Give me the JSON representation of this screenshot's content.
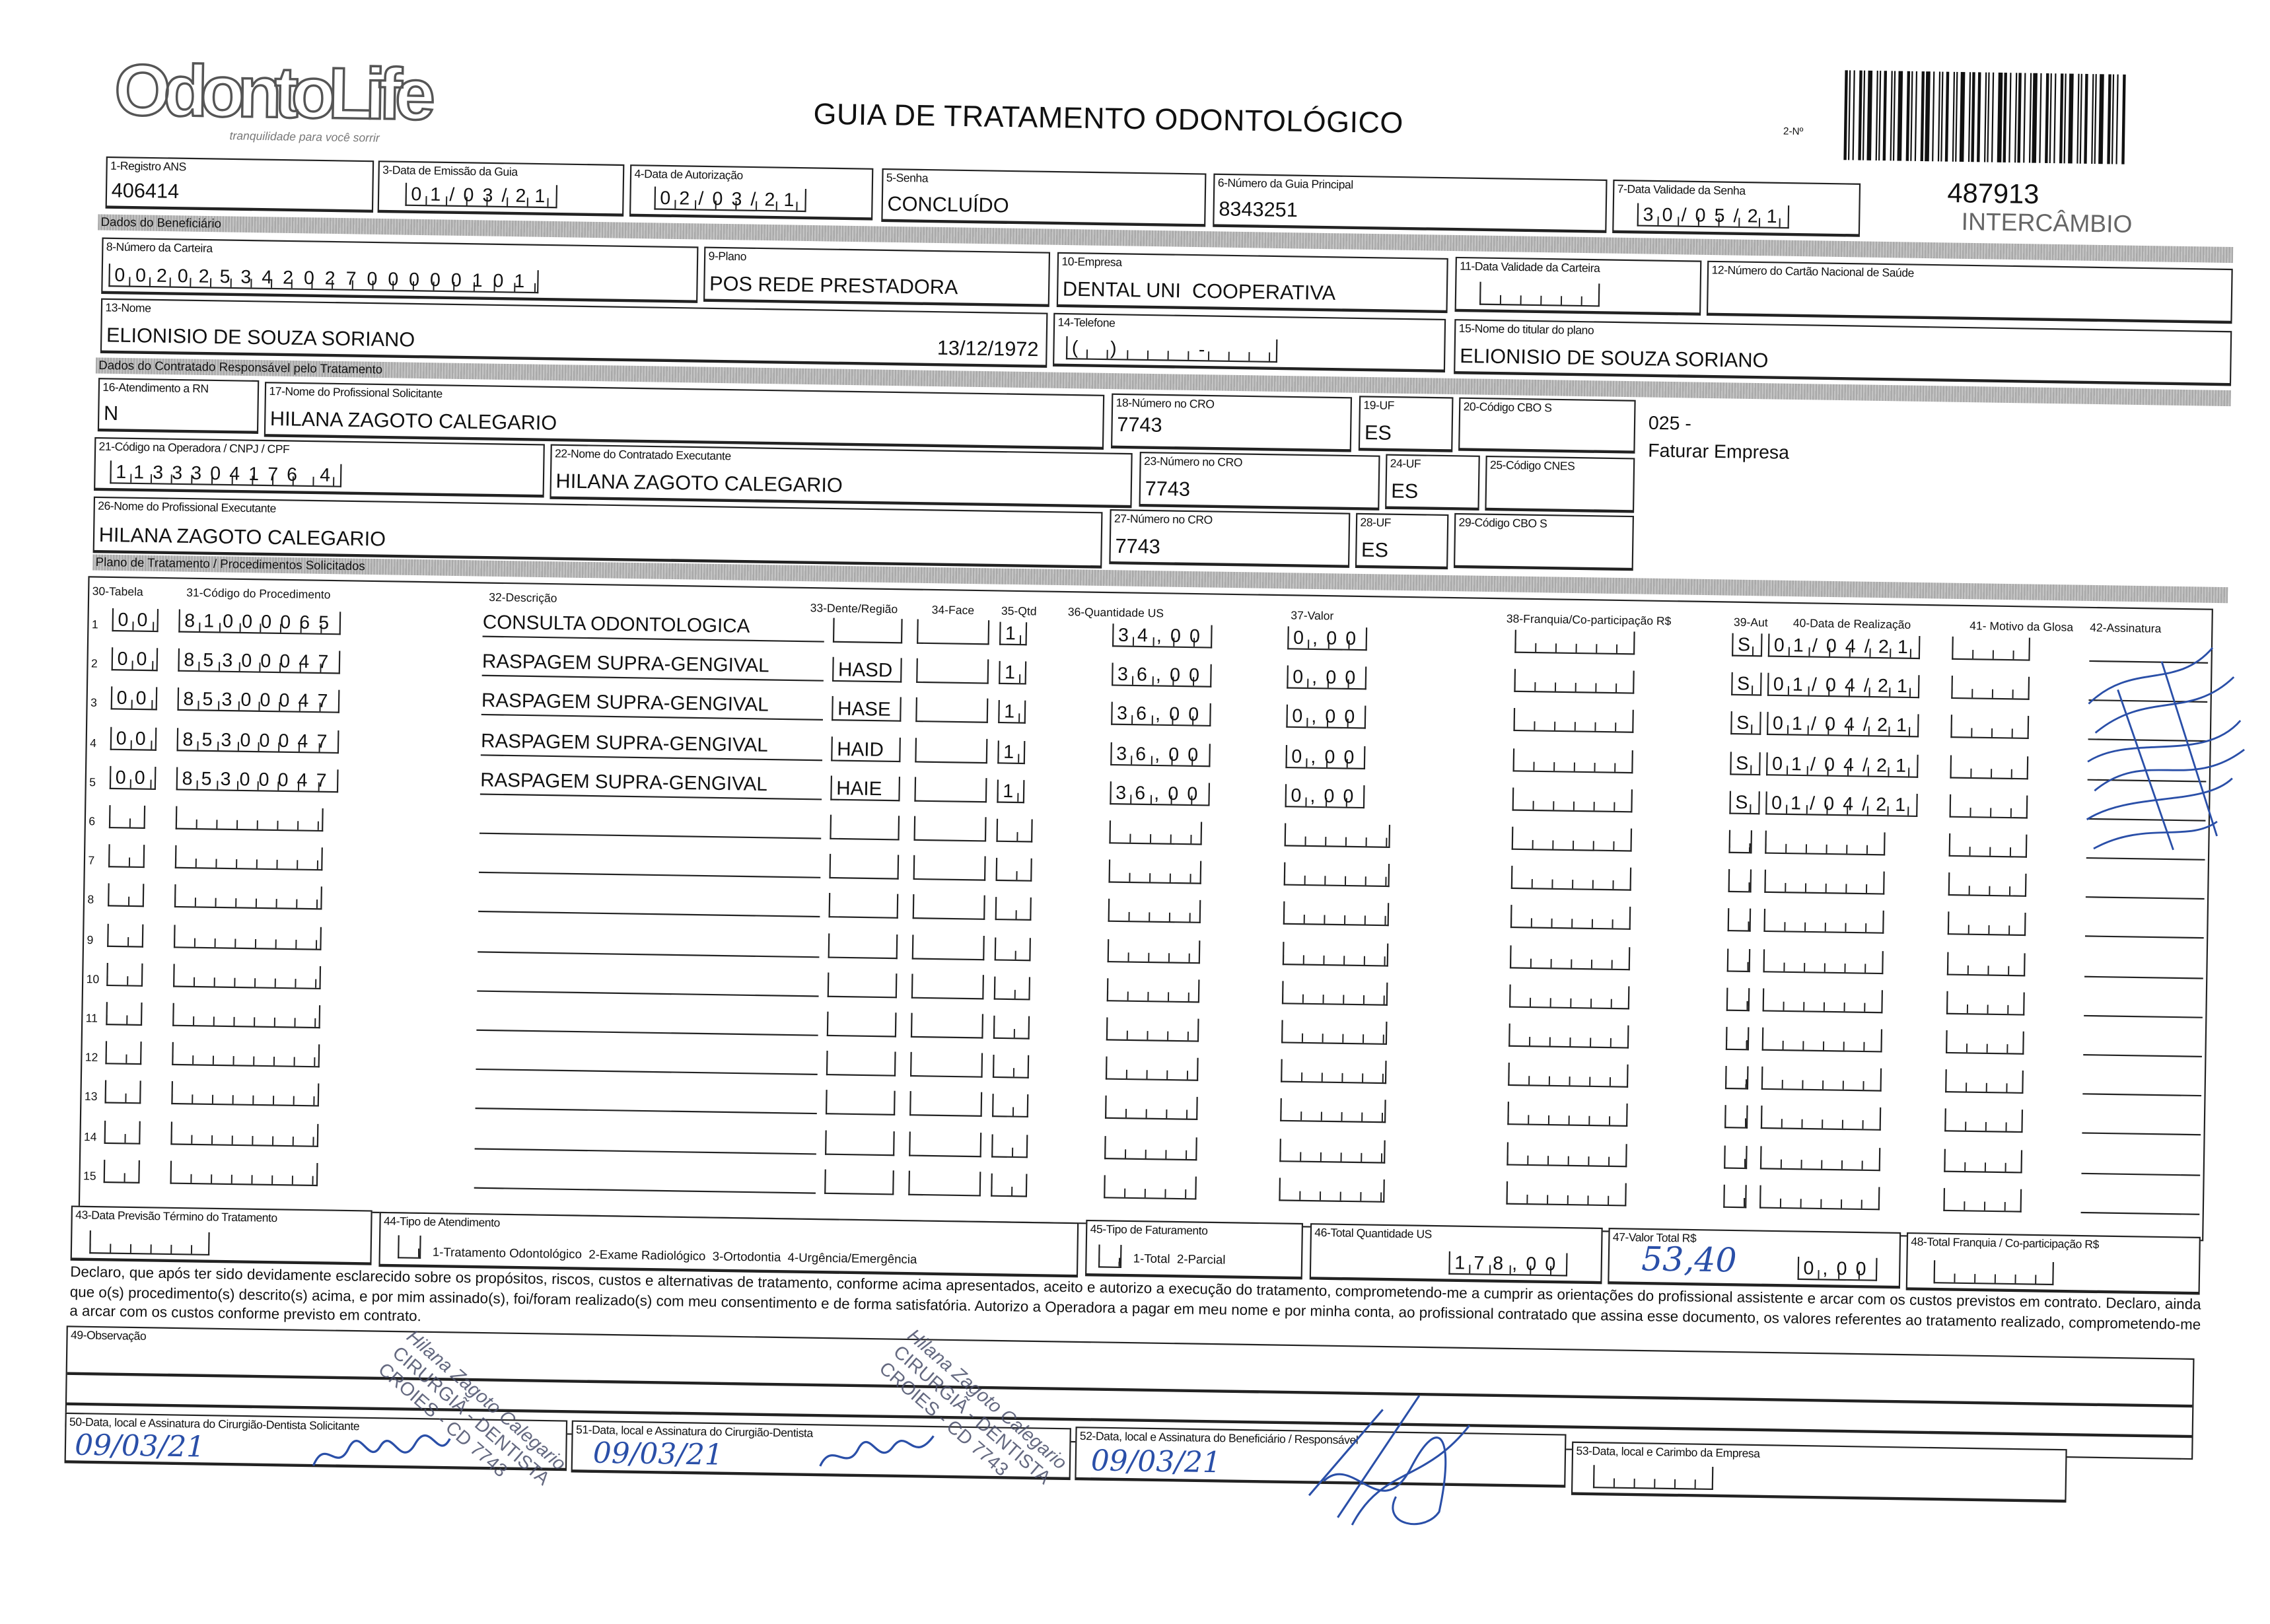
{
  "logo": {
    "name": "OdontoLife",
    "tagline": "tranquilidade para você sorrir"
  },
  "title": "GUIA DE TRATAMENTO ODONTOLÓGICO",
  "guide_number_label": "2-Nº",
  "guide_number": "487913",
  "guide_type": "INTERCÂMBIO",
  "header": {
    "registro_ans": {
      "label": "1-Registro ANS",
      "value": "406414"
    },
    "data_emissao": {
      "label": "3-Data de Emissão da Guia",
      "value": "01/03/21"
    },
    "data_autorizacao": {
      "label": "4-Data de Autorização",
      "value": "02/03/21"
    },
    "senha": {
      "label": "5-Senha",
      "value": "CONCLUÍDO"
    },
    "guia_principal": {
      "label": "6-Número da Guia Principal",
      "value": "8343251"
    },
    "validade_senha": {
      "label": "7-Data Validade da Senha",
      "value": "30/05/21"
    }
  },
  "section_beneficiario": "Dados do Beneficiário",
  "beneficiario": {
    "carteira": {
      "label": "8-Número da Carteira",
      "value": "00202534202700000101"
    },
    "plano": {
      "label": "9-Plano",
      "value": "POS REDE PRESTADORA"
    },
    "empresa": {
      "label": "10-Empresa",
      "value": "DENTAL UNI  COOPERATIVA"
    },
    "validade_carteira": {
      "label": "11-Data Validade da Carteira",
      "value": "  /  /  "
    },
    "cns": {
      "label": "12-Número do Cartão Nacional de Saúde",
      "value": ""
    },
    "nome": {
      "label": "13-Nome",
      "value": "ELIONISIO DE SOUZA SORIANO",
      "birth": "13/12/1972"
    },
    "telefone": {
      "label": "14-Telefone",
      "value": "(  )      -     "
    },
    "titular": {
      "label": "15-Nome do titular do plano",
      "value": "ELIONISIO DE SOUZA SORIANO"
    }
  },
  "section_contratado": "Dados do Contratado Responsável pelo Tratamento",
  "contratado": {
    "rn": {
      "label": "16-Atendimento a RN",
      "value": "N"
    },
    "solicitante": {
      "label": "17-Nome do Profissional Solicitante",
      "value": "HILANA ZAGOTO CALEGARIO"
    },
    "cro18": {
      "label": "18-Número no CRO",
      "value": "7743"
    },
    "uf19": {
      "label": "19-UF",
      "value": "ES"
    },
    "cbo20": {
      "label": "20-Código CBO S",
      "value": ""
    },
    "codigo_operadora": {
      "label": "21-Código na Operadora / CNPJ / CPF",
      "value": "1133304176 4"
    },
    "executante": {
      "label": "22-Nome do Contratado Executante",
      "value": "HILANA ZAGOTO CALEGARIO"
    },
    "cro23": {
      "label": "23-Número no CRO",
      "value": "7743"
    },
    "uf24": {
      "label": "24-UF",
      "value": "ES"
    },
    "cnes": {
      "label": "25-Código CNES",
      "value": ""
    },
    "prof_executante": {
      "label": "26-Nome do Profissional Executante",
      "value": "HILANA ZAGOTO CALEGARIO"
    },
    "cro27": {
      "label": "27-Número no CRO",
      "value": "7743"
    },
    "uf28": {
      "label": "28-UF",
      "value": "ES"
    },
    "cbo29": {
      "label": "29-Código CBO S",
      "value": ""
    },
    "note_code": "025 -",
    "note_text": "Faturar Empresa"
  },
  "section_plano": "Plano de Tratamento / Procedimentos Solicitados",
  "procedures": {
    "headers": [
      "30-Tabela",
      "31-Código do Procedimento",
      "32-Descrição",
      "33-Dente/Região",
      "34-Face",
      "35-Qtd",
      "36-Quantidade US",
      "37-Valor",
      "38-Franquia/Co-participação R$",
      "39-Aut",
      "40-Data de Realização",
      "41- Motivo da Glosa",
      "42-Assinatura"
    ],
    "rows": [
      {
        "n": "1",
        "tabela": "00",
        "codigo": "81000065",
        "descricao": "CONSULTA ODONTOLOGICA",
        "dente": "",
        "face": "",
        "qtd": "1",
        "qtd_us": "34,00",
        "valor": "0,00",
        "franquia": "",
        "aut": "S",
        "data": "01/04/21",
        "glosa": ""
      },
      {
        "n": "2",
        "tabela": "00",
        "codigo": "85300047",
        "descricao": "RASPAGEM SUPRA-GENGIVAL",
        "dente": "HASD",
        "face": "",
        "qtd": "1",
        "qtd_us": "36,00",
        "valor": "0,00",
        "franquia": "",
        "aut": "S",
        "data": "01/04/21",
        "glosa": ""
      },
      {
        "n": "3",
        "tabela": "00",
        "codigo": "85300047",
        "descricao": "RASPAGEM SUPRA-GENGIVAL",
        "dente": "HASE",
        "face": "",
        "qtd": "1",
        "qtd_us": "36,00",
        "valor": "0,00",
        "franquia": "",
        "aut": "S",
        "data": "01/04/21",
        "glosa": ""
      },
      {
        "n": "4",
        "tabela": "00",
        "codigo": "85300047",
        "descricao": "RASPAGEM SUPRA-GENGIVAL",
        "dente": "HAID",
        "face": "",
        "qtd": "1",
        "qtd_us": "36,00",
        "valor": "0,00",
        "franquia": "",
        "aut": "S",
        "data": "01/04/21",
        "glosa": ""
      },
      {
        "n": "5",
        "tabela": "00",
        "codigo": "85300047",
        "descricao": "RASPAGEM SUPRA-GENGIVAL",
        "dente": "HAIE",
        "face": "",
        "qtd": "1",
        "qtd_us": "36,00",
        "valor": "0,00",
        "franquia": "",
        "aut": "S",
        "data": "01/04/21",
        "glosa": ""
      },
      {
        "n": "6"
      },
      {
        "n": "7"
      },
      {
        "n": "8"
      },
      {
        "n": "9"
      },
      {
        "n": "10"
      },
      {
        "n": "11"
      },
      {
        "n": "12"
      },
      {
        "n": "13"
      },
      {
        "n": "14"
      },
      {
        "n": "15"
      }
    ]
  },
  "totals": {
    "previsao": {
      "label": "43-Data Previsão Término do Tratamento",
      "value": ""
    },
    "tipo_atendimento": {
      "label": "44-Tipo de Atendimento",
      "options": "1-Tratamento Odontológico  2-Exame Radiológico  3-Ortodontia  4-Urgência/Emergência",
      "value": ""
    },
    "tipo_faturamento": {
      "label": "45-Tipo de Faturamento",
      "options": "1-Total  2-Parcial",
      "value": ""
    },
    "total_us": {
      "label": "46-Total Quantidade US",
      "value": "178,00"
    },
    "valor_total": {
      "label": "47-Valor Total R$",
      "value": "0,00",
      "handwritten": "53,40"
    },
    "total_franquia": {
      "label": "48-Total Franquia / Co-participação R$",
      "value": ""
    }
  },
  "declaration": "Declaro, que após ter sido devidamente esclarecido sobre os propósitos, riscos, custos e alternativas de tratamento, conforme acima apresentados, aceito e autorizo a execução do tratamento, comprometendo-me a cumprir as orientações do profissional assistente e arcar com os custos previstos em contrato. Declaro, ainda que o(s) procedimento(s) descrito(s) acima, e por mim assinado(s), foi/foram realizado(s) com meu consentimento e de forma satisfatória. Autorizo a Operadora a pagar em meu nome e por minha conta, ao profissional contratado que assina esse documento, os valores referentes ao tratamento realizado, comprometendo-me a arcar com os custos conforme previsto em contrato.",
  "observacao": {
    "label": "49-Observação",
    "value": ""
  },
  "signatures": {
    "s50": {
      "label": "50-Data, local e Assinatura do Cirurgião-Dentista Solicitante",
      "date": "09/03/21"
    },
    "s51": {
      "label": "51-Data, local e Assinatura do Cirurgião-Dentista",
      "date": "09/03/21"
    },
    "s52": {
      "label": "52-Data, local e Assinatura do Beneficiário / Responsável",
      "date": "09/03/21"
    },
    "s53": {
      "label": "53-Data, local e Carimbo da Empresa",
      "date": ""
    }
  },
  "stamp": {
    "name": "Hilana Zagoto Calegario",
    "title": "CIRURGIÃ - DENTISTA",
    "reg": "CROIES - CD 7743"
  },
  "colors": {
    "ink": "#111111",
    "band": "#b5b5b5",
    "pen": "#2a4fa8",
    "stamp": "#4a4f6a"
  }
}
